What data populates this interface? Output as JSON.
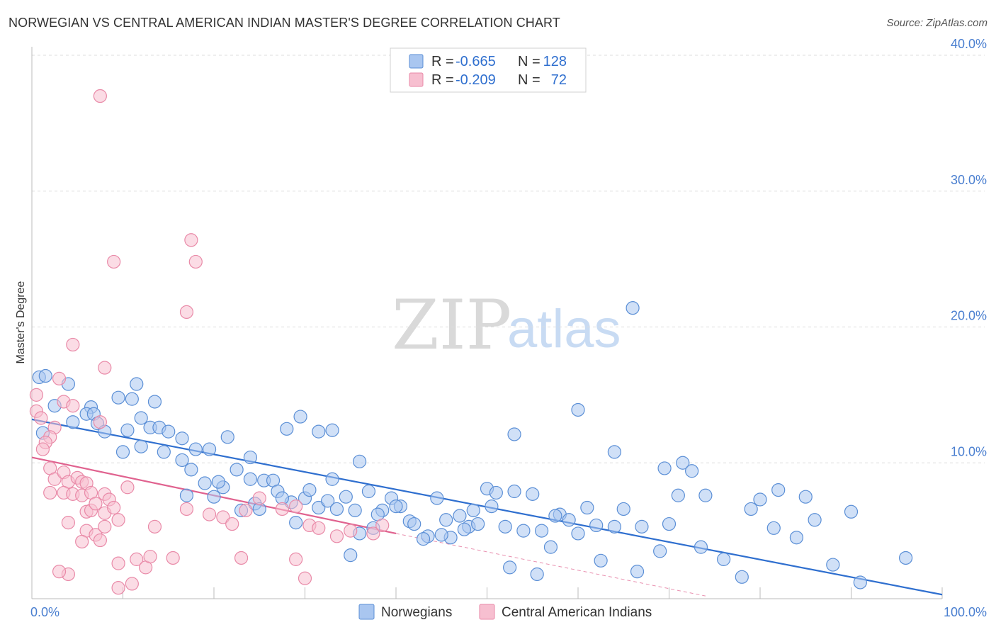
{
  "header": {
    "title": "NORWEGIAN VS CENTRAL AMERICAN INDIAN MASTER'S DEGREE CORRELATION CHART",
    "source": "Source: ZipAtlas.com"
  },
  "watermark": {
    "zip": "ZIP",
    "atlas": "atlas"
  },
  "colors": {
    "blue_fill": "#a9c6f0",
    "blue_stroke": "#5b8fd6",
    "blue_line": "#2f6fcf",
    "pink_fill": "#f7bfd0",
    "pink_stroke": "#e98aa8",
    "pink_line": "#e0628f",
    "grid": "#dddddd",
    "tick_label": "#4a7fd0"
  },
  "legend": {
    "rows": [
      {
        "r_label": "R =",
        "r_value": "-0.665",
        "n_label": "N =",
        "n_value": "128"
      },
      {
        "r_label": "R =",
        "r_value": "-0.209",
        "n_label": "N =",
        "n_value": "72"
      }
    ]
  },
  "bottom_legend": [
    "Norwegians",
    "Central American Indians"
  ],
  "chart_data": {
    "type": "scatter",
    "xlabel": "",
    "ylabel": "Master's Degree",
    "xlim": [
      0,
      100
    ],
    "ylim": [
      0,
      40
    ],
    "x_tick_labels": [
      "0.0%",
      "100.0%"
    ],
    "y_ticks": [
      10,
      20,
      30,
      40
    ],
    "y_tick_labels": [
      "10.0%",
      "20.0%",
      "30.0%",
      "40.0%"
    ],
    "series": [
      {
        "name": "Norwegians",
        "r": -0.665,
        "n": 128,
        "trend": {
          "x0": 0,
          "y0": 13.2,
          "x1": 100,
          "y1": 0.3
        },
        "points": [
          [
            0.8,
            16.3
          ],
          [
            1.5,
            16.4
          ],
          [
            4.0,
            15.8
          ],
          [
            2.5,
            14.2
          ],
          [
            6.5,
            14.1
          ],
          [
            9.5,
            14.8
          ],
          [
            11.5,
            15.8
          ],
          [
            13.5,
            14.5
          ],
          [
            1.2,
            12.2
          ],
          [
            4.5,
            13.0
          ],
          [
            6.0,
            13.6
          ],
          [
            6.8,
            13.6
          ],
          [
            7.2,
            12.9
          ],
          [
            8.0,
            12.3
          ],
          [
            10.5,
            12.4
          ],
          [
            11.0,
            14.7
          ],
          [
            12.0,
            13.3
          ],
          [
            13.0,
            12.6
          ],
          [
            14.0,
            12.6
          ],
          [
            15.0,
            12.3
          ],
          [
            16.5,
            11.8
          ],
          [
            18.0,
            11.0
          ],
          [
            10.0,
            10.8
          ],
          [
            12.0,
            11.2
          ],
          [
            14.5,
            10.8
          ],
          [
            16.5,
            10.2
          ],
          [
            17.5,
            9.5
          ],
          [
            19.5,
            11.0
          ],
          [
            21.5,
            11.9
          ],
          [
            22.5,
            9.5
          ],
          [
            24.0,
            8.8
          ],
          [
            25.5,
            8.7
          ],
          [
            26.5,
            8.7
          ],
          [
            17.0,
            7.6
          ],
          [
            19.0,
            8.5
          ],
          [
            20.0,
            7.5
          ],
          [
            21.0,
            8.2
          ],
          [
            23.0,
            6.5
          ],
          [
            24.5,
            7.0
          ],
          [
            27.0,
            7.9
          ],
          [
            28.5,
            7.1
          ],
          [
            30.0,
            7.4
          ],
          [
            30.5,
            8.0
          ],
          [
            31.5,
            6.7
          ],
          [
            32.5,
            7.2
          ],
          [
            33.5,
            6.6
          ],
          [
            34.5,
            7.5
          ],
          [
            35.5,
            6.5
          ],
          [
            36.0,
            10.1
          ],
          [
            37.0,
            7.9
          ],
          [
            37.5,
            5.2
          ],
          [
            38.5,
            6.5
          ],
          [
            39.5,
            7.4
          ],
          [
            40.5,
            6.8
          ],
          [
            41.5,
            5.7
          ],
          [
            42.0,
            5.5
          ],
          [
            43.5,
            4.6
          ],
          [
            44.5,
            7.4
          ],
          [
            45.5,
            5.8
          ],
          [
            46.0,
            4.5
          ],
          [
            47.0,
            6.1
          ],
          [
            48.0,
            5.3
          ],
          [
            49.0,
            5.5
          ],
          [
            50.0,
            8.1
          ],
          [
            51.0,
            7.8
          ],
          [
            52.0,
            5.3
          ],
          [
            53.0,
            7.9
          ],
          [
            54.0,
            5.0
          ],
          [
            55.0,
            7.7
          ],
          [
            56.0,
            5.0
          ],
          [
            57.0,
            3.8
          ],
          [
            58.0,
            6.2
          ],
          [
            59.0,
            5.8
          ],
          [
            60.0,
            4.8
          ],
          [
            61.0,
            6.7
          ],
          [
            62.0,
            5.4
          ],
          [
            64.0,
            5.3
          ],
          [
            65.0,
            6.6
          ],
          [
            67.0,
            5.3
          ],
          [
            69.0,
            3.5
          ],
          [
            70.0,
            5.5
          ],
          [
            73.5,
            3.8
          ],
          [
            74.0,
            7.6
          ],
          [
            76.0,
            2.9
          ],
          [
            79.0,
            6.6
          ],
          [
            82.0,
            8.0
          ],
          [
            85.0,
            7.5
          ],
          [
            90.0,
            6.4
          ],
          [
            96.0,
            3.0
          ],
          [
            60.0,
            13.9
          ],
          [
            64.0,
            10.8
          ],
          [
            71.0,
            7.6
          ],
          [
            71.5,
            10.0
          ],
          [
            53.0,
            12.1
          ],
          [
            57.5,
            6.1
          ],
          [
            40.0,
            6.8
          ],
          [
            33.0,
            8.8
          ],
          [
            28.0,
            12.5
          ],
          [
            29.5,
            13.4
          ],
          [
            31.5,
            12.3
          ],
          [
            33.0,
            12.4
          ],
          [
            36.0,
            4.8
          ],
          [
            24.0,
            10.4
          ],
          [
            20.5,
            8.6
          ],
          [
            25.0,
            6.6
          ],
          [
            27.5,
            7.4
          ],
          [
            29.0,
            5.6
          ],
          [
            38.0,
            6.2
          ],
          [
            35.0,
            3.2
          ],
          [
            43.0,
            4.4
          ],
          [
            45.0,
            4.7
          ],
          [
            47.5,
            5.1
          ],
          [
            48.5,
            6.5
          ],
          [
            50.5,
            6.8
          ],
          [
            52.5,
            2.3
          ],
          [
            55.5,
            1.8
          ],
          [
            62.5,
            2.8
          ],
          [
            66.5,
            2.0
          ],
          [
            78.0,
            1.6
          ],
          [
            72.5,
            9.4
          ],
          [
            69.5,
            9.6
          ],
          [
            80.0,
            7.3
          ],
          [
            81.5,
            5.2
          ],
          [
            84.0,
            4.5
          ],
          [
            86.0,
            5.8
          ],
          [
            88.0,
            2.5
          ],
          [
            91.0,
            1.2
          ],
          [
            66.0,
            21.4
          ]
        ]
      },
      {
        "name": "Central American Indians",
        "r": -0.209,
        "n": 72,
        "trend": {
          "x0": 0,
          "y0": 10.4,
          "x1": 40,
          "y1": 4.8,
          "dashed_to": {
            "x": 74,
            "y": 0.2
          }
        },
        "points": [
          [
            7.5,
            37.0
          ],
          [
            17.5,
            26.4
          ],
          [
            9.0,
            24.8
          ],
          [
            18.0,
            24.8
          ],
          [
            17.0,
            21.1
          ],
          [
            4.5,
            18.7
          ],
          [
            8.0,
            17.0
          ],
          [
            3.0,
            16.2
          ],
          [
            0.5,
            15.0
          ],
          [
            0.5,
            13.8
          ],
          [
            1.0,
            13.3
          ],
          [
            3.5,
            14.5
          ],
          [
            4.5,
            14.2
          ],
          [
            2.5,
            12.6
          ],
          [
            2.0,
            11.9
          ],
          [
            1.5,
            11.5
          ],
          [
            1.2,
            11.0
          ],
          [
            7.5,
            13.0
          ],
          [
            2.0,
            9.6
          ],
          [
            2.5,
            8.8
          ],
          [
            3.5,
            9.3
          ],
          [
            4.0,
            8.6
          ],
          [
            5.0,
            8.9
          ],
          [
            5.5,
            8.6
          ],
          [
            6.0,
            8.5
          ],
          [
            2.0,
            7.8
          ],
          [
            3.5,
            7.8
          ],
          [
            4.5,
            7.7
          ],
          [
            5.5,
            7.6
          ],
          [
            6.5,
            7.8
          ],
          [
            8.0,
            7.7
          ],
          [
            8.5,
            7.3
          ],
          [
            6.0,
            6.4
          ],
          [
            6.5,
            6.5
          ],
          [
            7.0,
            7.0
          ],
          [
            8.0,
            6.3
          ],
          [
            9.0,
            6.7
          ],
          [
            10.5,
            8.2
          ],
          [
            4.0,
            5.6
          ],
          [
            6.0,
            5.0
          ],
          [
            7.0,
            4.7
          ],
          [
            8.0,
            5.3
          ],
          [
            9.5,
            5.8
          ],
          [
            5.5,
            4.2
          ],
          [
            7.5,
            4.3
          ],
          [
            13.5,
            5.3
          ],
          [
            17.0,
            6.6
          ],
          [
            19.5,
            6.2
          ],
          [
            21.0,
            6.0
          ],
          [
            22.0,
            5.5
          ],
          [
            23.5,
            6.5
          ],
          [
            25.0,
            7.4
          ],
          [
            27.5,
            6.6
          ],
          [
            29.0,
            6.8
          ],
          [
            30.5,
            5.4
          ],
          [
            31.5,
            5.2
          ],
          [
            33.5,
            4.6
          ],
          [
            35.0,
            5.0
          ],
          [
            37.5,
            4.8
          ],
          [
            38.5,
            5.4
          ],
          [
            9.5,
            2.6
          ],
          [
            11.5,
            2.9
          ],
          [
            12.5,
            2.3
          ],
          [
            13.0,
            3.1
          ],
          [
            15.5,
            3.0
          ],
          [
            23.0,
            3.0
          ],
          [
            29.0,
            2.9
          ],
          [
            4.0,
            1.8
          ],
          [
            9.5,
            0.8
          ],
          [
            11.0,
            1.1
          ],
          [
            30.0,
            1.5
          ],
          [
            3.0,
            2.0
          ]
        ]
      }
    ]
  }
}
